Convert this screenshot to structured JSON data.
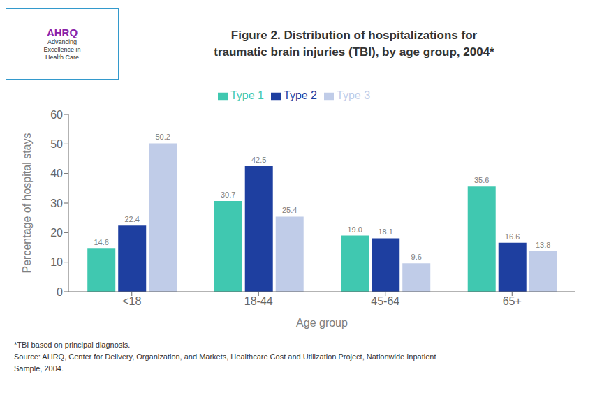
{
  "chart_data": {
    "type": "bar",
    "title": "Figure 2. Distribution of hospitalizations for\ntraumatic brain injuries (TBI), by age group, 2004*",
    "x_label": "Age group",
    "y_label": "Percentage of hospital stays",
    "categories": [
      "<18",
      "18-44",
      "45-64",
      "65+"
    ],
    "series": [
      {
        "name": "Type 1",
        "color": "#40C8B0",
        "values": [
          14.6,
          30.7,
          19.0,
          35.6
        ],
        "value_labels": [
          "14.6",
          "30.7",
          "19.0",
          "35.6"
        ]
      },
      {
        "name": "Type 2",
        "color": "#1E3FA0",
        "values": [
          22.4,
          42.5,
          18.1,
          16.6
        ],
        "value_labels": [
          "22.4",
          "42.5",
          "18.1",
          "16.6"
        ]
      },
      {
        "name": "Type 3",
        "color": "#C0CCE8",
        "values": [
          50.2,
          25.4,
          9.6,
          13.8
        ],
        "value_labels": [
          "50.2",
          "25.4",
          "9.6",
          "13.8"
        ]
      }
    ],
    "ylim": [
      0,
      60
    ],
    "yticks": [
      0,
      10,
      20,
      30,
      40,
      50,
      60
    ],
    "grid": false,
    "legend": "top",
    "data_labels": true,
    "annotations": [
      "AHRQ",
      "Advancing\nExcellence in\nHealth Care",
      "*TBI based on principal diagnosis.",
      "Source: AHRQ, Center for Delivery, Organization, and Markets, Healthcare Cost and Utilization Project, Nationwide Inpatient",
      "Sample, 2004."
    ]
  }
}
